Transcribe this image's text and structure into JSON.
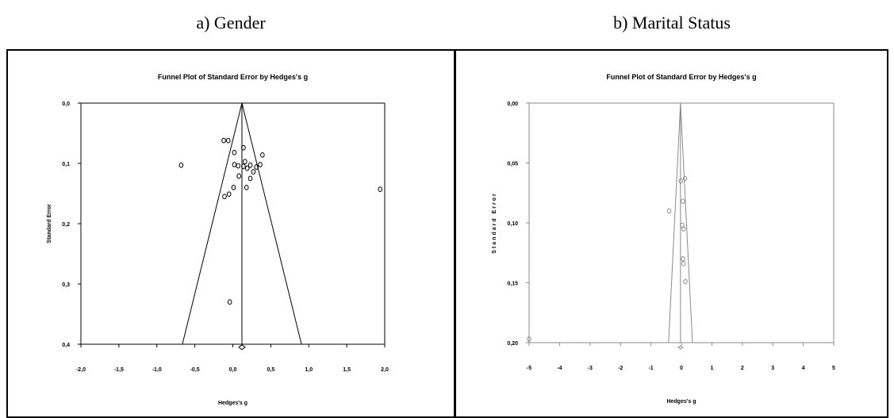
{
  "captions": {
    "a": "a) Gender",
    "b": "b) Marital Status"
  },
  "chart_data": [
    {
      "type": "scatter",
      "subtype": "funnel",
      "title": "Funnel Plot of Standard Error by Hedges's g",
      "xlabel": "Hedges's g",
      "ylabel": "Standard Error",
      "xlim": [
        -2.0,
        2.0
      ],
      "ylim": [
        0.0,
        0.4
      ],
      "y_inverted": true,
      "x_ticks": [
        "-2,0",
        "-1,5",
        "-1,0",
        "-0,5",
        "0,0",
        "0,5",
        "1,0",
        "1,5",
        "2,0"
      ],
      "y_ticks": [
        "0,0",
        "0,1",
        "0,2",
        "0,3",
        "0,4"
      ],
      "summary_effect": 0.12,
      "diamond": {
        "x": 0.12,
        "y": 0.405
      },
      "color": "#000000",
      "points": [
        {
          "x": -0.68,
          "y": 0.103
        },
        {
          "x": -0.12,
          "y": 0.062
        },
        {
          "x": -0.06,
          "y": 0.062
        },
        {
          "x": 0.14,
          "y": 0.074
        },
        {
          "x": 0.02,
          "y": 0.082
        },
        {
          "x": 0.39,
          "y": 0.086
        },
        {
          "x": 0.16,
          "y": 0.097
        },
        {
          "x": 0.02,
          "y": 0.102
        },
        {
          "x": 0.07,
          "y": 0.104
        },
        {
          "x": 0.14,
          "y": 0.105
        },
        {
          "x": 0.23,
          "y": 0.103
        },
        {
          "x": 0.36,
          "y": 0.102
        },
        {
          "x": 0.31,
          "y": 0.106
        },
        {
          "x": 0.19,
          "y": 0.108
        },
        {
          "x": 0.27,
          "y": 0.114
        },
        {
          "x": 0.08,
          "y": 0.121
        },
        {
          "x": 0.23,
          "y": 0.125
        },
        {
          "x": 0.01,
          "y": 0.14
        },
        {
          "x": 0.18,
          "y": 0.14
        },
        {
          "x": -0.05,
          "y": 0.151
        },
        {
          "x": -0.11,
          "y": 0.155
        },
        {
          "x": 1.94,
          "y": 0.143
        },
        {
          "x": -0.04,
          "y": 0.33
        }
      ]
    },
    {
      "type": "scatter",
      "subtype": "funnel",
      "title": "Funnel Plot of Standard Error by Hedges's g",
      "xlabel": "Hedges's g",
      "ylabel": "Standard Error",
      "xlim": [
        -5,
        5
      ],
      "ylim": [
        0.0,
        0.2
      ],
      "y_inverted": true,
      "x_ticks": [
        "-5",
        "-4",
        "-3",
        "-2",
        "-1",
        "0",
        "1",
        "2",
        "3",
        "4",
        "5"
      ],
      "y_ticks": [
        "0,00",
        "0,05",
        "0,10",
        "0,15",
        "0,20"
      ],
      "summary_effect": -0.03,
      "diamond": {
        "x": -0.03,
        "y": 0.204
      },
      "color": "#8a8a8a",
      "points": [
        {
          "x": -5.0,
          "y": 0.197
        },
        {
          "x": 0.12,
          "y": 0.063
        },
        {
          "x": -0.02,
          "y": 0.065
        },
        {
          "x": 0.05,
          "y": 0.082
        },
        {
          "x": -0.4,
          "y": 0.09
        },
        {
          "x": 0.03,
          "y": 0.102
        },
        {
          "x": 0.07,
          "y": 0.105
        },
        {
          "x": 0.05,
          "y": 0.13
        },
        {
          "x": 0.07,
          "y": 0.134
        },
        {
          "x": 0.13,
          "y": 0.149
        }
      ]
    }
  ]
}
